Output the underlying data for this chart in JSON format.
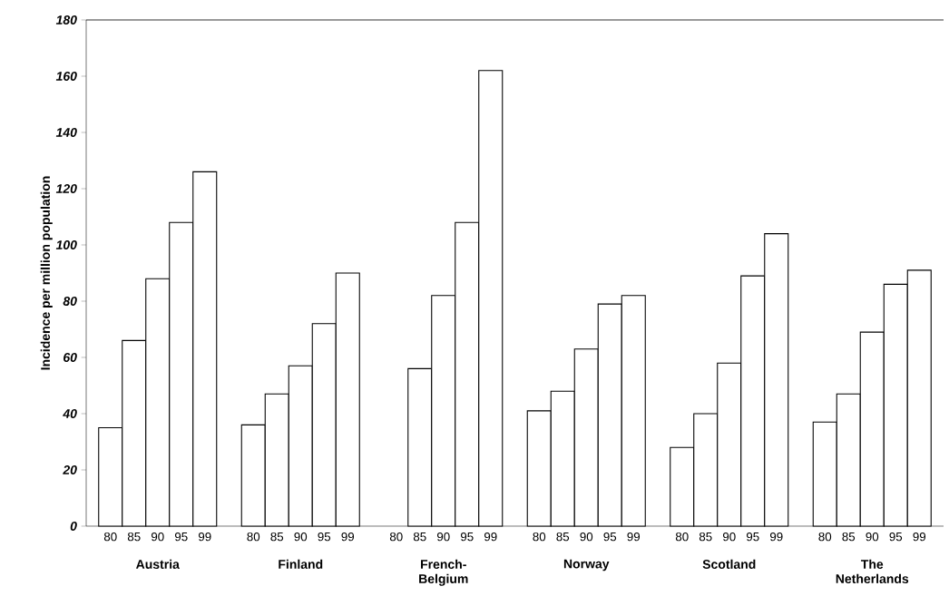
{
  "chart_data": {
    "type": "bar",
    "ylabel": "Incidence per million population",
    "categories": [
      "Austria",
      "Finland",
      "French-Belgium",
      "Norway",
      "Scotland",
      "The Netherlands"
    ],
    "series": [
      {
        "name": "80",
        "color": "#ffffff",
        "values": [
          35,
          36,
          null,
          41,
          28,
          37
        ]
      },
      {
        "name": "85",
        "color": "#ffffff",
        "values": [
          66,
          47,
          56,
          48,
          40,
          47
        ]
      },
      {
        "name": "90",
        "color": "#ffffff",
        "values": [
          88,
          57,
          82,
          63,
          58,
          69
        ]
      },
      {
        "name": "95",
        "color": "#ffffff",
        "values": [
          108,
          72,
          108,
          79,
          89,
          86
        ]
      },
      {
        "name": "99",
        "color": "#ffffff",
        "values": [
          126,
          90,
          162,
          82,
          104,
          91
        ]
      }
    ],
    "ylim": [
      0,
      180
    ],
    "yticks": [
      0,
      20,
      40,
      60,
      80,
      100,
      120,
      140,
      160,
      180
    ]
  }
}
